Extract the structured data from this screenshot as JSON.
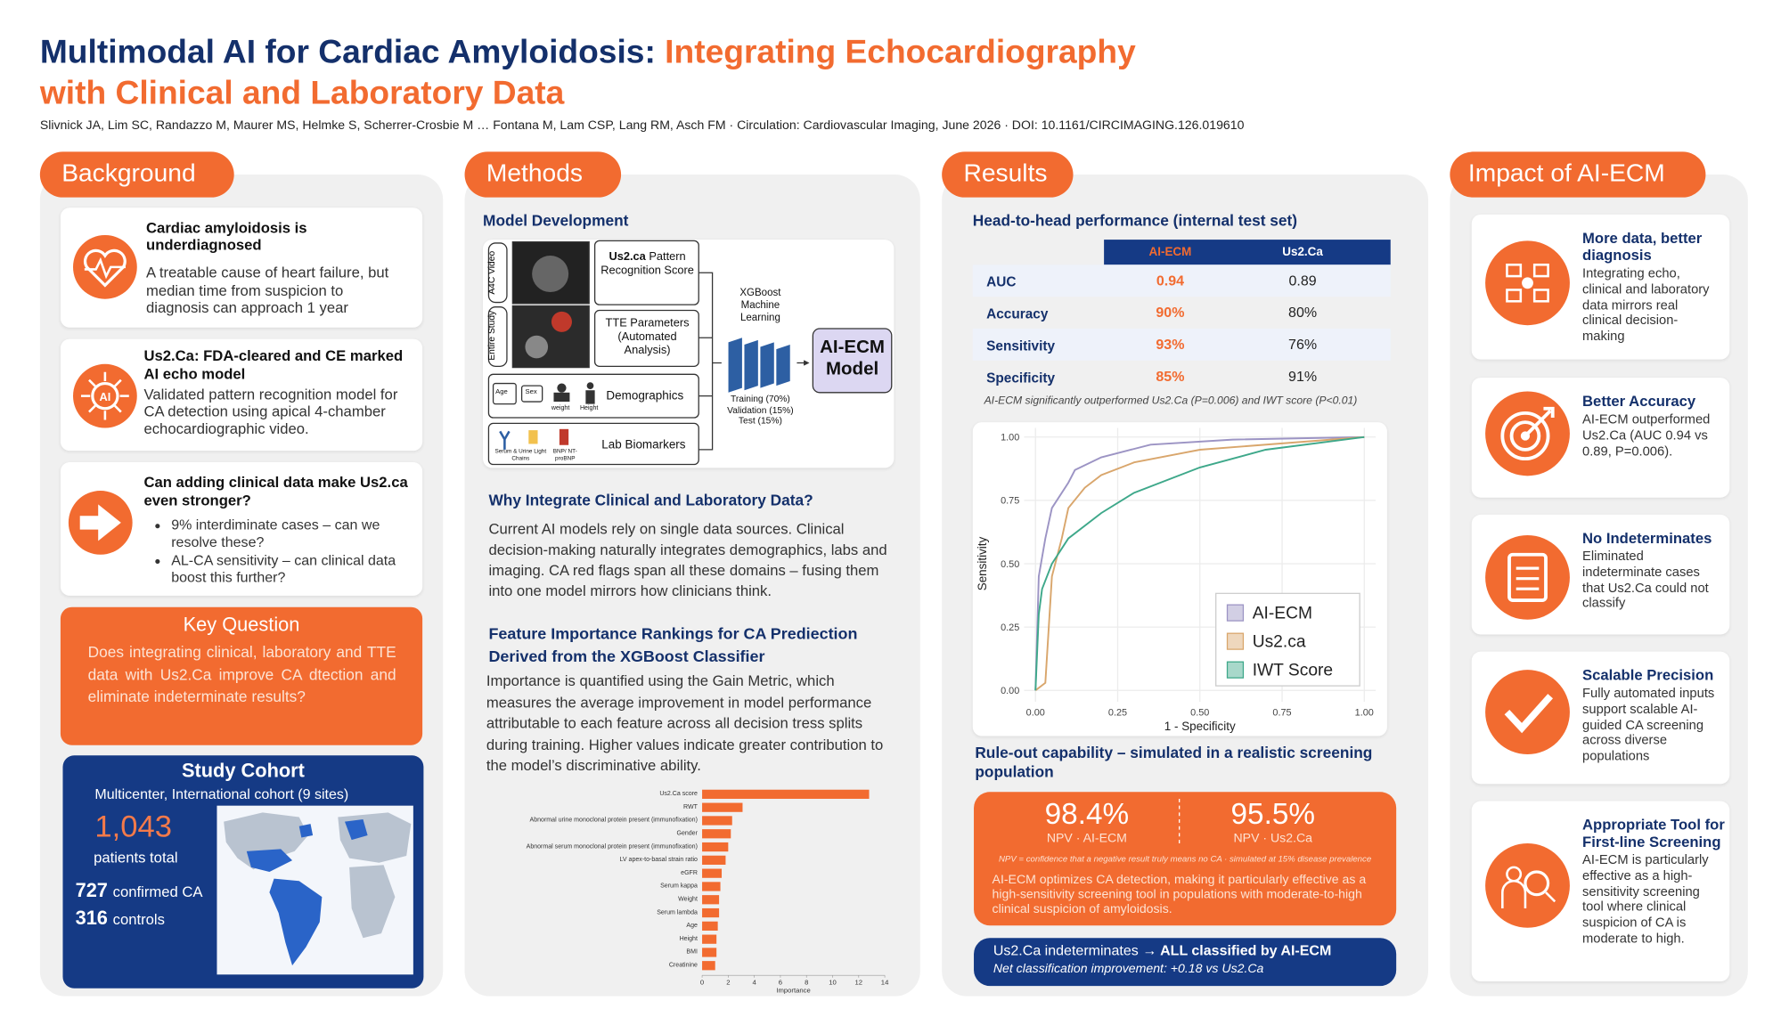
{
  "header": {
    "title_main": "Multimodal AI for Cardiac Amyloidosis:",
    "title_accent": "Integrating Echocardiography with Clinical and Laboratory Data",
    "authors": "Slivnick JA, Lim SC, Randazzo M, Maurer MS, Helmke S, Scherrer-Crosbie M … Fontana M, Lam CSP, Lang RM, Asch FM · Circulation: Cardiovascular Imaging, June 2026 · DOI: 10.1161/CIRCIMAGING.126.019610"
  },
  "background": {
    "heading": "Background",
    "cards": [
      {
        "title": "Cardiac amyloidosis is underdiagnosed",
        "text": "A treatable cause of heart failure, but median time from suspicion to diagnosis can approach 1 year"
      },
      {
        "title": "Us2.Ca: FDA-cleared and CE marked AI echo model",
        "text": "Validated pattern recognition model for CA detection using apical 4-chamber echocardiographic video."
      },
      {
        "title": "Can adding clinical data make Us2.ca even stronger?",
        "bullets": [
          "9% interdiminate cases – can we resolve these?",
          "AL-CA sensitivity – can clinical data boost this further?"
        ]
      }
    ],
    "key_question": {
      "heading": "Key Question",
      "text": "Does integrating clinical, laboratory and TTE data with Us2.Ca improve CA dtection and eliminate indeterminate results?"
    },
    "study_cohort": {
      "heading": "Study Cohort",
      "subtitle": "Multicenter, International cohort (9 sites)",
      "total": "1,043",
      "total_label": "patients total",
      "groups": [
        {
          "count": 727,
          "label": "confirmed CA"
        },
        {
          "count": 316,
          "label": "controls"
        }
      ]
    }
  },
  "methods": {
    "heading": "Methods",
    "model_development": {
      "heading": "Model Development",
      "a4c": "A4C Video",
      "entire": "Entire Study",
      "us2ca_name": "Us2.ca",
      "us2ca_rest": "Pattern Recognition Score",
      "tte": "TTE Parameters (Automated Analysis)",
      "demographics": "Demographics",
      "demo_icons": [
        "Age",
        "Sex",
        "weight",
        "Height"
      ],
      "labs": "Lab Biomarkers",
      "lab_icons": [
        "Serum & Urine Light Chains",
        "BNP/ NT-proBNP"
      ],
      "model": "XGBoost Machine Learning",
      "split": "Training (70%) Validation (15%) Test (15%)",
      "output": "AI-ECM Model"
    },
    "why": {
      "heading": "Why Integrate Clinical and Laboratory Data?",
      "text": "Current AI models rely on single data sources. Clinical decision-making naturally integrates demographics, labs and imaging. CA red flags span all these domains – fusing them into one model mirrors how clinicians think."
    },
    "features": {
      "heading": "Feature Importance Rankings for CA Prediection Derived from the XGBoost Classifier",
      "text": "Importance is quantified using the Gain Metric, which measures the average improvement in model performance attributable to each feature across all decision tress splits during training. Higher values indicate greater contribution to the model’s discriminative ability.",
      "chart": {
        "type": "bar",
        "orientation": "horizontal",
        "color": "#f26b30",
        "xlabel": "Importance",
        "categories": [
          "Us2.Ca score",
          "RWT",
          "Abnormal urine monoclonal protein present (immunofixation)",
          "Gender",
          "Abnormal serum monoclonal protein present (immunofixation)",
          "LV apex-to-basal strain ratio",
          "eGFR",
          "Serum kappa",
          "Weight",
          "Serum lambda",
          "Age",
          "Height",
          "BMI",
          "Creatinine"
        ],
        "values": [
          12.8,
          3.1,
          2.3,
          2.2,
          2.0,
          1.8,
          1.5,
          1.4,
          1.3,
          1.3,
          1.2,
          1.1,
          1.1,
          1.0
        ],
        "xlim": [
          0,
          14
        ],
        "xticks": [
          0,
          2,
          4,
          6,
          8,
          10,
          12,
          14
        ]
      }
    }
  },
  "results": {
    "heading": "Results",
    "performance": {
      "heading": "Head-to-head performance (internal test set)",
      "columns": [
        "AI-ECM",
        "Us2.Ca"
      ],
      "rows": [
        {
          "label": "AUC",
          "values": [
            "0.94",
            "0.89"
          ]
        },
        {
          "label": "Accuracy",
          "values": [
            "90%",
            "80%"
          ]
        },
        {
          "label": "Sensitivity",
          "values": [
            "93%",
            "76%"
          ]
        },
        {
          "label": "Specificity",
          "values": [
            "85%",
            "91%"
          ]
        }
      ],
      "footnote": "AI-ECM significantly outperformed Us2.Ca (P=0.006) and IWT score (P<0.01)"
    },
    "roc": {
      "type": "line",
      "xlabel": "1 - Specificity",
      "ylabel": "Sensitivity",
      "legend": "bottom-right",
      "xlim": [
        0,
        1
      ],
      "ylim": [
        0,
        1
      ],
      "xticks": [
        {
          "value": 0,
          "label": "0.00"
        },
        {
          "value": 0.25,
          "label": "0.25"
        },
        {
          "value": 0.5,
          "label": "0.50"
        },
        {
          "value": 0.75,
          "label": "0.75"
        },
        {
          "value": 1,
          "label": "1.00"
        }
      ],
      "yticks": [
        {
          "value": 0,
          "label": "0.00"
        },
        {
          "value": 0.25,
          "label": "0.25"
        },
        {
          "value": 0.5,
          "label": "0.50"
        },
        {
          "value": 0.75,
          "label": "0.75"
        },
        {
          "value": 1,
          "label": "1.00"
        }
      ],
      "series": [
        {
          "name": "AI-ECM",
          "color": "#9c94c4",
          "x": [
            0,
            0.01,
            0.03,
            0.05,
            0.1,
            0.12,
            0.2,
            0.35,
            0.6,
            1
          ],
          "values": [
            0,
            0.45,
            0.6,
            0.72,
            0.82,
            0.87,
            0.92,
            0.97,
            0.99,
            1
          ]
        },
        {
          "name": "Us2.ca",
          "color": "#d9a66c",
          "x": [
            0,
            0.03,
            0.05,
            0.08,
            0.1,
            0.15,
            0.2,
            0.3,
            0.5,
            1
          ],
          "values": [
            0,
            0.03,
            0.45,
            0.6,
            0.72,
            0.8,
            0.85,
            0.9,
            0.95,
            1
          ]
        },
        {
          "name": "IWT Score",
          "color": "#3ea88a",
          "x": [
            0,
            0.01,
            0.02,
            0.05,
            0.1,
            0.2,
            0.3,
            0.5,
            0.7,
            1
          ],
          "values": [
            0,
            0.3,
            0.4,
            0.5,
            0.6,
            0.7,
            0.78,
            0.88,
            0.95,
            1
          ]
        }
      ]
    },
    "ruleout": {
      "heading": "Rule-out capability – simulated in a realistic screening population",
      "npv": [
        {
          "value": "98.4%",
          "label": "NPV · AI-ECM"
        },
        {
          "value": "95.5%",
          "label": "NPV · Us2.Ca"
        }
      ],
      "note": "NPV = confidence that a negative result truly means no CA · simulated at 15% disease prevalence",
      "text": "AI-ECM optimizes CA detection, making it particularly effective as a high-sensitivity screening tool in populations with moderate-to-high clinical suspicion of amyloidosis."
    },
    "indeterminates": {
      "lead": "Us2.Ca indeterminates",
      "result": "→ ALL classified by AI-ECM",
      "note": "Net classification improvement: +0.18 vs Us2.Ca"
    }
  },
  "impact": {
    "heading": "Impact of AI-ECM",
    "cards": [
      {
        "title": "More data, better diagnosis",
        "text": "Integrating echo, clinical and laboratory data mirrors real clinical decision-making"
      },
      {
        "title": "Better Accuracy",
        "text": "AI-ECM outperformed Us2.Ca (AUC 0.94 vs 0.89, P=0.006)."
      },
      {
        "title": "No Indeterminates",
        "text": "Eliminated indeterminate cases that Us2.Ca could not classify"
      },
      {
        "title": "Scalable Precision",
        "text": "Fully automated inputs support scalable AI-guided CA screening across diverse populations"
      },
      {
        "title": "Appropriate Tool for First-line Screening",
        "text": "AI-ECM is particularly effective as a high-sensitivity screening tool where clinical suspicion of CA is moderate to high."
      }
    ]
  }
}
